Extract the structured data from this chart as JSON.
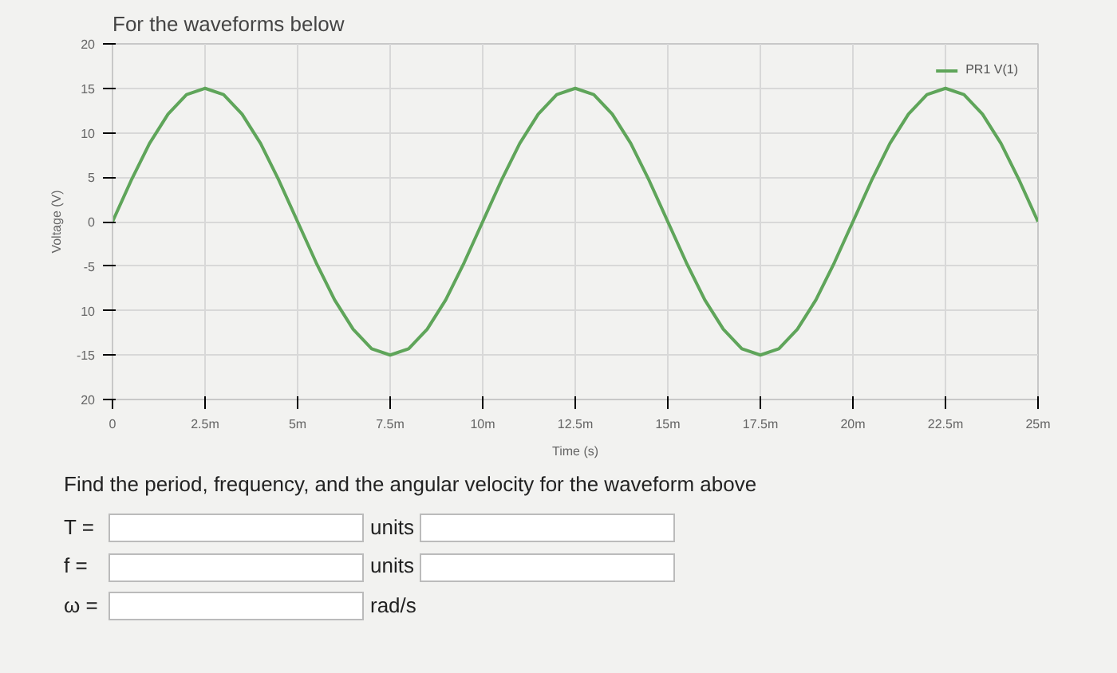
{
  "chart_data": {
    "type": "line",
    "title": "For the waveforms below",
    "xlabel": "Time (s)",
    "ylabel": "Voltage (V)",
    "x": [
      0,
      0.5,
      1,
      1.5,
      2,
      2.5,
      3,
      3.5,
      4,
      4.5,
      5,
      5.5,
      6,
      6.5,
      7,
      7.5,
      8,
      8.5,
      9,
      9.5,
      10,
      10.5,
      11,
      11.5,
      12,
      12.5,
      13,
      13.5,
      14,
      14.5,
      15,
      15.5,
      16,
      16.5,
      17,
      17.5,
      18,
      18.5,
      19,
      19.5,
      20,
      20.5,
      21,
      21.5,
      22,
      22.5,
      23,
      23.5,
      24,
      24.5,
      25
    ],
    "series": [
      {
        "name": "PR1 V(1)",
        "color": "#5fa55a",
        "values": [
          0,
          4.6,
          8.8,
          12.1,
          14.3,
          15,
          14.3,
          12.1,
          8.8,
          4.6,
          0,
          -4.6,
          -8.8,
          -12.1,
          -14.3,
          -15,
          -14.3,
          -12.1,
          -8.8,
          -4.6,
          0,
          4.6,
          8.8,
          12.1,
          14.3,
          15,
          14.3,
          12.1,
          8.8,
          4.6,
          0,
          -4.6,
          -8.8,
          -12.1,
          -14.3,
          -15,
          -14.3,
          -12.1,
          -8.8,
          -4.6,
          0,
          4.6,
          8.8,
          12.1,
          14.3,
          15,
          14.3,
          12.1,
          8.8,
          4.6,
          0
        ]
      }
    ],
    "xlim": [
      0,
      25
    ],
    "ylim": [
      -20,
      20
    ],
    "xticks": [
      0,
      {
        "value": 2.5,
        "label": "2.5m"
      },
      {
        "value": 5,
        "label": "5m"
      },
      {
        "value": 7.5,
        "label": "7.5m"
      },
      {
        "value": 10,
        "label": "10m"
      },
      {
        "value": 12.5,
        "label": "12.5m"
      },
      {
        "value": 15,
        "label": "15m"
      },
      {
        "value": 17.5,
        "label": "17.5m"
      },
      {
        "value": 20,
        "label": "20m"
      },
      {
        "value": 22.5,
        "label": "22.5m"
      },
      {
        "value": 25,
        "label": "25m"
      }
    ],
    "yticks": [
      {
        "value": -20,
        "label": "20"
      },
      -15,
      {
        "value": -10,
        "label": "10"
      },
      -5,
      0,
      5,
      10,
      15,
      20
    ],
    "grid": true,
    "legend": "top right",
    "marker": "none",
    "line_style": "solid",
    "annotations": [
      "Find the period, frequency, and the angular velocity for the waveform above",
      "T =",
      "units",
      "f =",
      "units",
      "ω =",
      "rad/s"
    ]
  }
}
